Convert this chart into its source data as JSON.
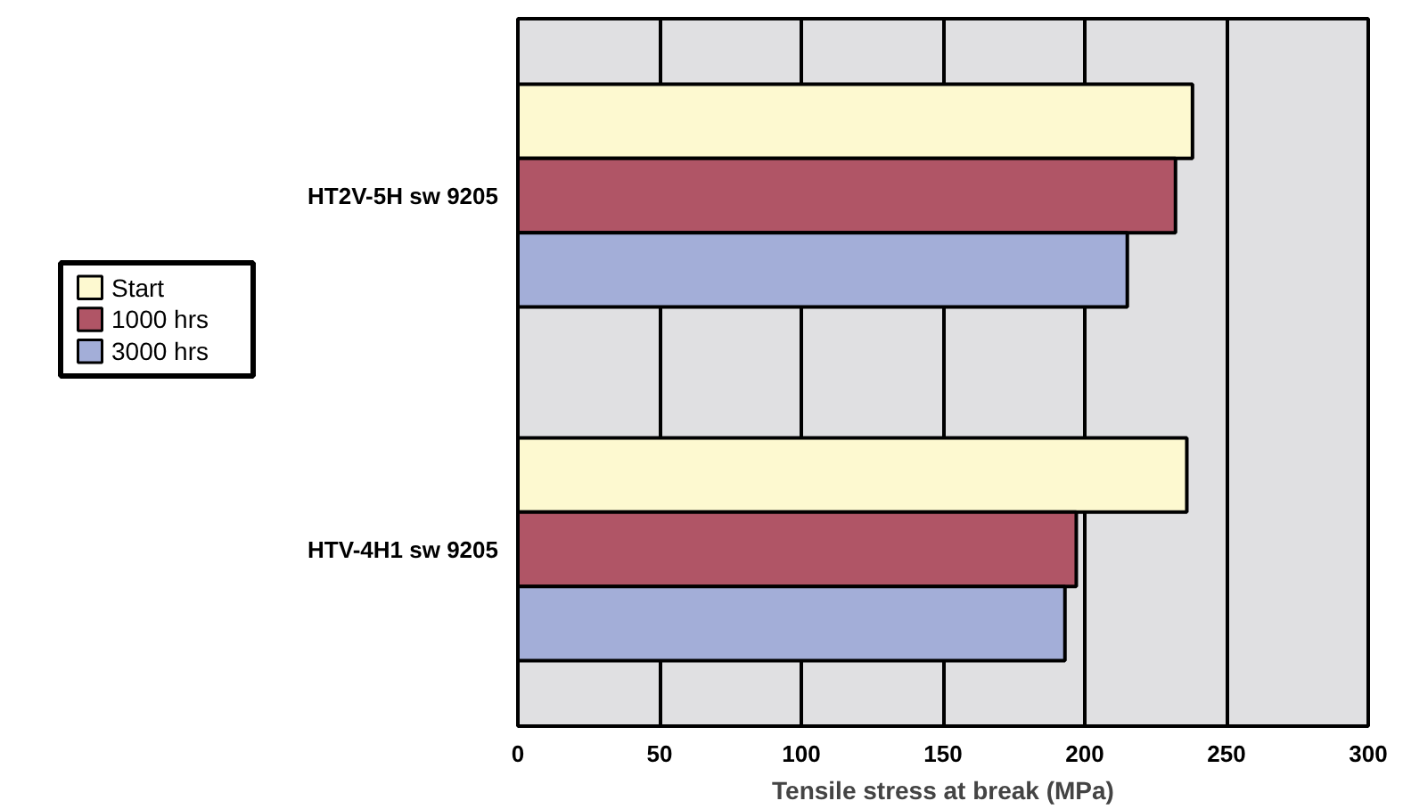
{
  "chart_data": {
    "type": "bar",
    "orientation": "horizontal",
    "categories": [
      "HT2V-5H sw 9205",
      "HTV-4H1 sw 9205"
    ],
    "series": [
      {
        "name": "Start",
        "color": "#fdf9d0",
        "values": [
          238,
          236
        ]
      },
      {
        "name": "1000 hrs",
        "color": "#b05566",
        "values": [
          232,
          197
        ]
      },
      {
        "name": "3000 hrs",
        "color": "#a3aed8",
        "values": [
          215,
          193
        ]
      }
    ],
    "xlabel": "Tensile stress at break (MPa)",
    "xlim": [
      0,
      300
    ],
    "xticks": [
      0,
      50,
      100,
      150,
      200,
      250,
      300
    ],
    "grid": "x",
    "legend": "left"
  }
}
